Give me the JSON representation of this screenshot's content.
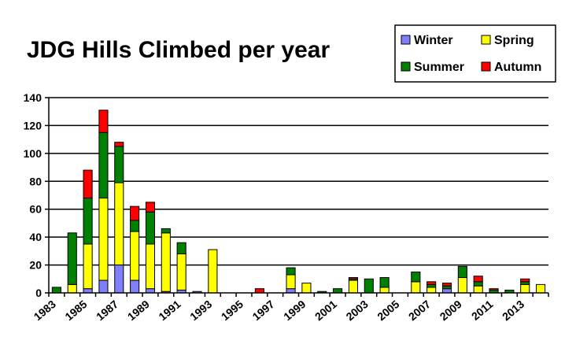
{
  "chart_data": {
    "type": "bar",
    "stacked": true,
    "title": "JDG Hills Climbed per year",
    "xlabel": "",
    "ylabel": "",
    "ylim": [
      0,
      140
    ],
    "yticks": [
      0,
      20,
      40,
      60,
      80,
      100,
      120,
      140
    ],
    "grid": true,
    "legend_position": "top-right",
    "x": [
      1983,
      1984,
      1985,
      1986,
      1987,
      1988,
      1989,
      1990,
      1991,
      1992,
      1993,
      1994,
      1995,
      1996,
      1997,
      1998,
      1999,
      2000,
      2001,
      2002,
      2003,
      2004,
      2005,
      2006,
      2007,
      2008,
      2009,
      2010,
      2011,
      2012,
      2013,
      2014
    ],
    "xtick_labels": [
      "1983",
      "1985",
      "1987",
      "1989",
      "1991",
      "1993",
      "1995",
      "1997",
      "1999",
      "2001",
      "2003",
      "2005",
      "2007",
      "2009",
      "2011",
      "2013"
    ],
    "series": [
      {
        "name": "Winter",
        "color": "#8080ff",
        "values": [
          0,
          0,
          3,
          9,
          20,
          9,
          3,
          1,
          2,
          1,
          0,
          0,
          0,
          0,
          0,
          3,
          0,
          0,
          0,
          0,
          0,
          0,
          0,
          0,
          0,
          3,
          0,
          0,
          0,
          0,
          0,
          0
        ]
      },
      {
        "name": "Spring",
        "color": "#ffff00",
        "values": [
          0,
          6,
          32,
          59,
          59,
          35,
          32,
          42,
          26,
          0,
          31,
          0,
          0,
          0,
          0,
          10,
          7,
          0,
          0,
          9,
          0,
          4,
          0,
          8,
          4,
          0,
          11,
          5,
          0,
          0,
          6,
          6
        ]
      },
      {
        "name": "Summer",
        "color": "#008000",
        "values": [
          4,
          37,
          33,
          47,
          26,
          8,
          23,
          3,
          8,
          0,
          0,
          0,
          0,
          0,
          0,
          5,
          0,
          1,
          3,
          1,
          10,
          7,
          0,
          7,
          2,
          2,
          8,
          3,
          2,
          2,
          2,
          0
        ]
      },
      {
        "name": "Autumn",
        "color": "#ff0000",
        "values": [
          0,
          0,
          20,
          16,
          3,
          10,
          7,
          0,
          0,
          0,
          0,
          0,
          0,
          3,
          0,
          0,
          0,
          0,
          0,
          1,
          0,
          0,
          0,
          0,
          2,
          2,
          0,
          4,
          1,
          0,
          2,
          0
        ]
      }
    ]
  }
}
